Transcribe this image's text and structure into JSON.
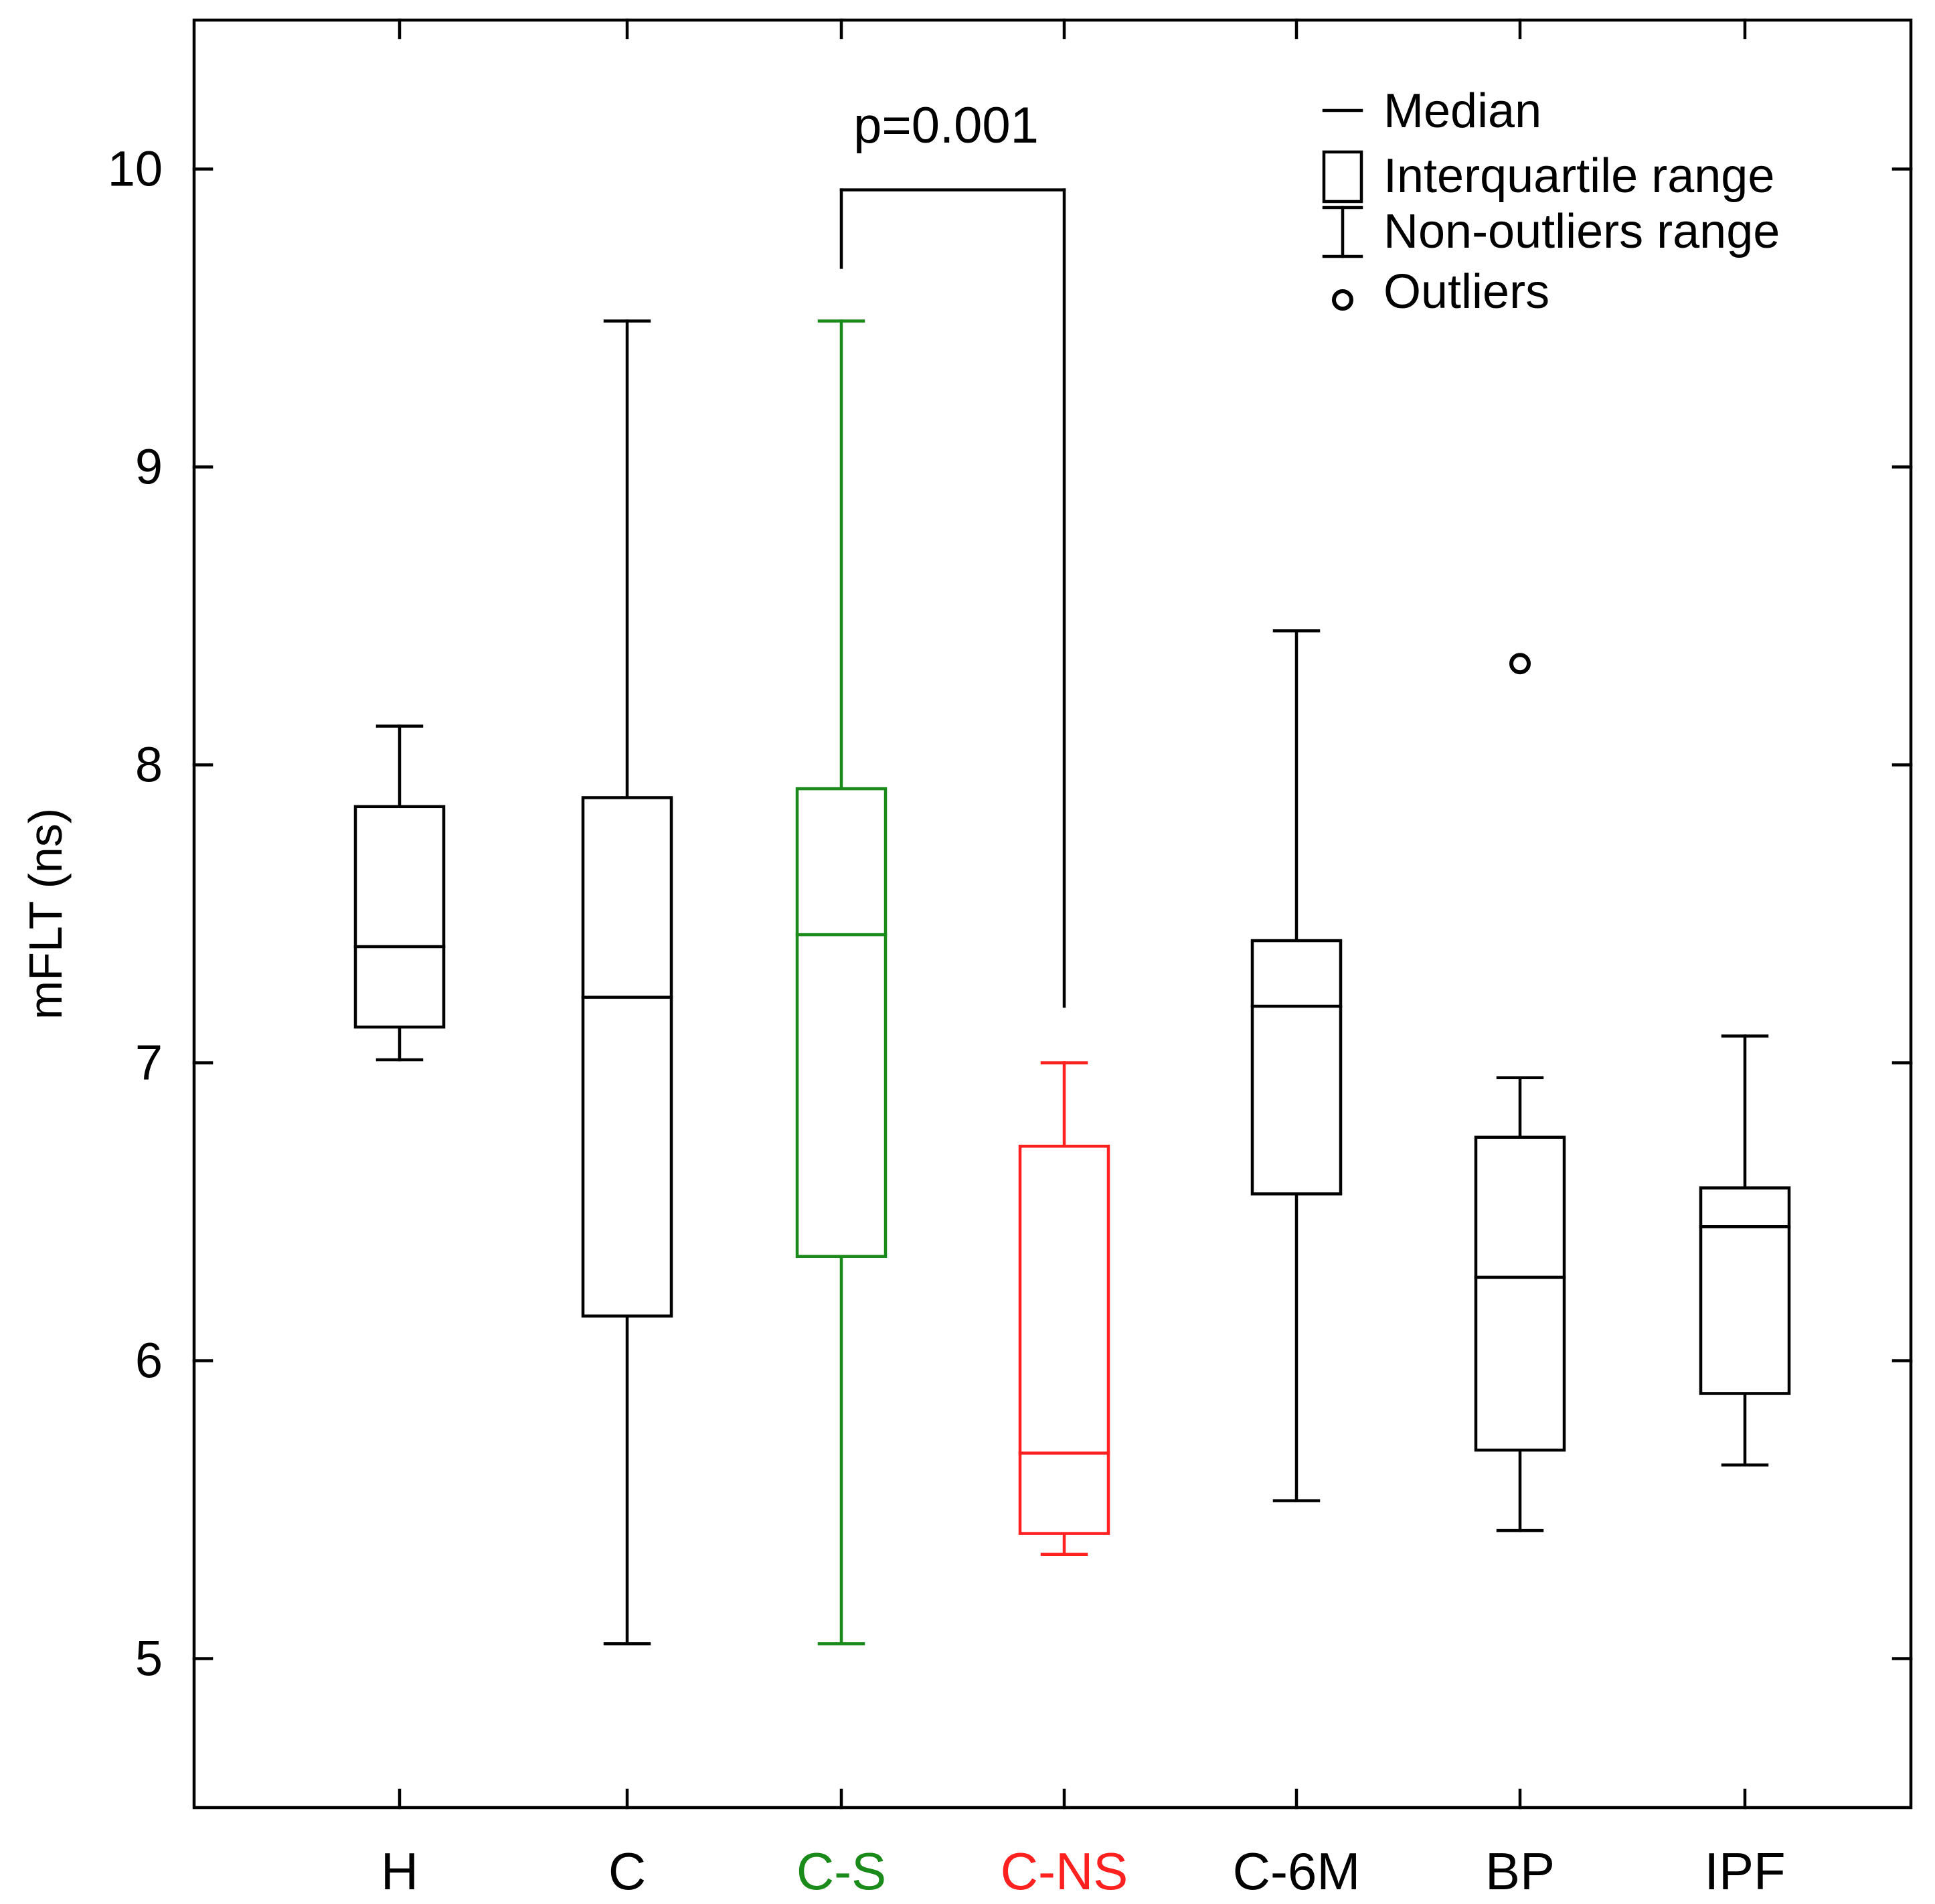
{
  "chart_data": {
    "type": "box",
    "title": "",
    "xlabel": "",
    "ylabel": "mFLT (ns)",
    "ylim": [
      4.5,
      10.5
    ],
    "yticks": [
      5,
      6,
      7,
      8,
      9,
      10
    ],
    "ytick_labels": [
      "5",
      "6",
      "7",
      "8",
      "9",
      "10"
    ],
    "grid": false,
    "categories": [
      "H",
      "C",
      "C-S",
      "C-NS",
      "C-6M",
      "BP",
      "IPF"
    ],
    "category_colors": [
      "#000000",
      "#000000",
      "#1a8a1a",
      "#ff2020",
      "#000000",
      "#000000",
      "#000000"
    ],
    "series": [
      {
        "name": "H",
        "whisker_low": 7.01,
        "q1": 7.12,
        "median": 7.39,
        "q3": 7.86,
        "whisker_high": 8.13,
        "outliers": []
      },
      {
        "name": "C",
        "whisker_low": 5.05,
        "q1": 6.15,
        "median": 7.22,
        "q3": 7.89,
        "whisker_high": 9.49,
        "outliers": []
      },
      {
        "name": "C-S",
        "whisker_low": 5.05,
        "q1": 6.35,
        "median": 7.43,
        "q3": 7.92,
        "whisker_high": 9.49,
        "outliers": []
      },
      {
        "name": "C-NS",
        "whisker_low": 5.35,
        "q1": 5.42,
        "median": 5.69,
        "q3": 6.72,
        "whisker_high": 7.0,
        "outliers": []
      },
      {
        "name": "C-6M",
        "whisker_low": 5.53,
        "q1": 6.56,
        "median": 7.19,
        "q3": 7.41,
        "whisker_high": 8.45,
        "outliers": []
      },
      {
        "name": "BP",
        "whisker_low": 5.43,
        "q1": 5.7,
        "median": 6.28,
        "q3": 6.75,
        "whisker_high": 6.95,
        "outliers": [
          8.34
        ]
      },
      {
        "name": "IPF",
        "whisker_low": 5.65,
        "q1": 5.89,
        "median": 6.45,
        "q3": 6.58,
        "whisker_high": 7.09,
        "outliers": []
      }
    ],
    "annotations": [
      {
        "text": "p=0.001",
        "from": "C-S",
        "to": "C-NS",
        "bracket_y": 9.93,
        "left_drop_to": 9.67,
        "right_drop_to": 7.19
      }
    ],
    "legend": {
      "position": "top-right",
      "items": [
        {
          "symbol": "median",
          "label": "Median"
        },
        {
          "symbol": "box",
          "label": "Interquartile range"
        },
        {
          "symbol": "whisker",
          "label": "Non-outliers range"
        },
        {
          "symbol": "outlier",
          "label": "Outliers"
        }
      ]
    }
  }
}
